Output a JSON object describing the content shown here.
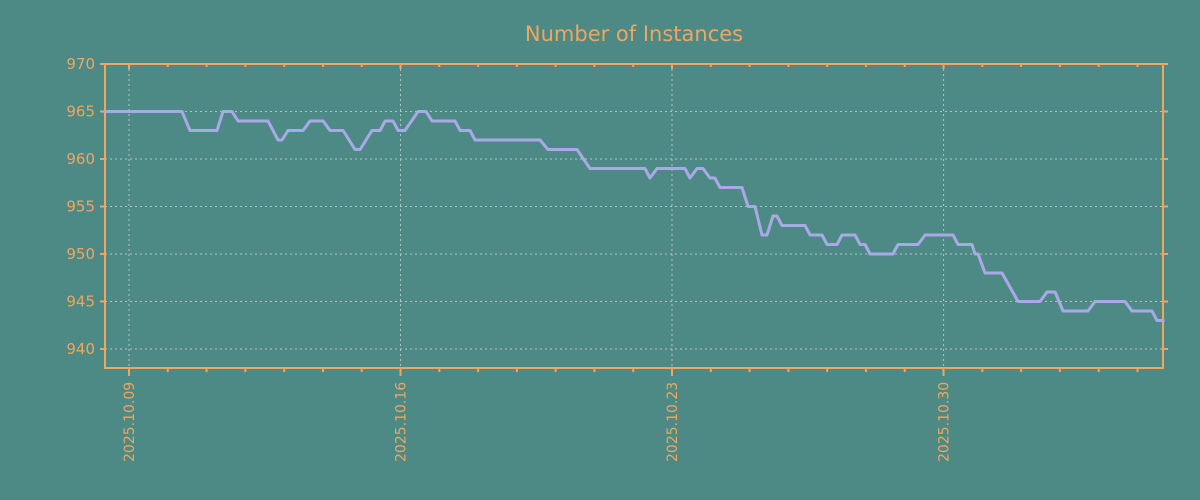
{
  "title": "Number of Instances",
  "colors": {
    "background": "#4e8a85",
    "frame": "#f1a55f",
    "text": "#f1a55f",
    "line": "#a9a9e8",
    "grid": "#c8cdc8"
  },
  "chart_data": {
    "type": "line",
    "title": "Number of Instances",
    "xlabel": "",
    "ylabel": "",
    "grid": true,
    "legend": "none",
    "ylim": [
      938,
      970
    ],
    "yticks": [
      940,
      945,
      950,
      955,
      960,
      965,
      970
    ],
    "xticks": [
      {
        "pos": 0.0227,
        "label": "2025.10.09"
      },
      {
        "pos": 0.2793,
        "label": "2025.10.16"
      },
      {
        "pos": 0.5359,
        "label": "2025.10.23"
      },
      {
        "pos": 0.7926,
        "label": "2025.10.30"
      }
    ],
    "minor_tick_day_frac": 0.03666,
    "minor_tick_day_count": 27,
    "tick_label_rotation": -90,
    "series": [
      {
        "name": "instances",
        "points": [
          [
            0.0,
            965
          ],
          [
            0.0728,
            965
          ],
          [
            0.0803,
            963
          ],
          [
            0.1059,
            963
          ],
          [
            0.1115,
            965
          ],
          [
            0.12,
            965
          ],
          [
            0.1257,
            964
          ],
          [
            0.1541,
            964
          ],
          [
            0.1635,
            962
          ],
          [
            0.1673,
            962
          ],
          [
            0.173,
            963
          ],
          [
            0.1872,
            963
          ],
          [
            0.1938,
            964
          ],
          [
            0.2061,
            964
          ],
          [
            0.2127,
            963
          ],
          [
            0.225,
            963
          ],
          [
            0.2363,
            961
          ],
          [
            0.2411,
            961
          ],
          [
            0.2524,
            963
          ],
          [
            0.26,
            963
          ],
          [
            0.2647,
            964
          ],
          [
            0.2722,
            964
          ],
          [
            0.277,
            963
          ],
          [
            0.2836,
            963
          ],
          [
            0.2959,
            965
          ],
          [
            0.3035,
            965
          ],
          [
            0.3091,
            964
          ],
          [
            0.3308,
            964
          ],
          [
            0.3356,
            963
          ],
          [
            0.345,
            963
          ],
          [
            0.3497,
            962
          ],
          [
            0.4112,
            962
          ],
          [
            0.4187,
            961
          ],
          [
            0.4461,
            961
          ],
          [
            0.4584,
            959
          ],
          [
            0.5104,
            959
          ],
          [
            0.5151,
            958
          ],
          [
            0.5217,
            959
          ],
          [
            0.5482,
            959
          ],
          [
            0.5529,
            958
          ],
          [
            0.5595,
            959
          ],
          [
            0.5652,
            959
          ],
          [
            0.5718,
            958
          ],
          [
            0.5765,
            958
          ],
          [
            0.5813,
            957
          ],
          [
            0.6021,
            957
          ],
          [
            0.6078,
            955
          ],
          [
            0.6144,
            955
          ],
          [
            0.621,
            952
          ],
          [
            0.6257,
            952
          ],
          [
            0.6314,
            954
          ],
          [
            0.6352,
            954
          ],
          [
            0.6399,
            953
          ],
          [
            0.6616,
            953
          ],
          [
            0.6664,
            952
          ],
          [
            0.6777,
            952
          ],
          [
            0.6825,
            951
          ],
          [
            0.6919,
            951
          ],
          [
            0.6966,
            952
          ],
          [
            0.7089,
            952
          ],
          [
            0.7137,
            951
          ],
          [
            0.7184,
            951
          ],
          [
            0.7231,
            950
          ],
          [
            0.7448,
            950
          ],
          [
            0.7495,
            951
          ],
          [
            0.7684,
            951
          ],
          [
            0.7751,
            952
          ],
          [
            0.8015,
            952
          ],
          [
            0.8063,
            951
          ],
          [
            0.8195,
            951
          ],
          [
            0.8223,
            950
          ],
          [
            0.8252,
            950
          ],
          [
            0.8318,
            948
          ],
          [
            0.8478,
            948
          ],
          [
            0.863,
            945
          ],
          [
            0.8838,
            945
          ],
          [
            0.8904,
            946
          ],
          [
            0.898,
            946
          ],
          [
            0.9055,
            944
          ],
          [
            0.9291,
            944
          ],
          [
            0.9357,
            945
          ],
          [
            0.9641,
            945
          ],
          [
            0.9707,
            944
          ],
          [
            0.9896,
            944
          ],
          [
            0.9943,
            943
          ],
          [
            1.0,
            943
          ]
        ]
      }
    ]
  }
}
